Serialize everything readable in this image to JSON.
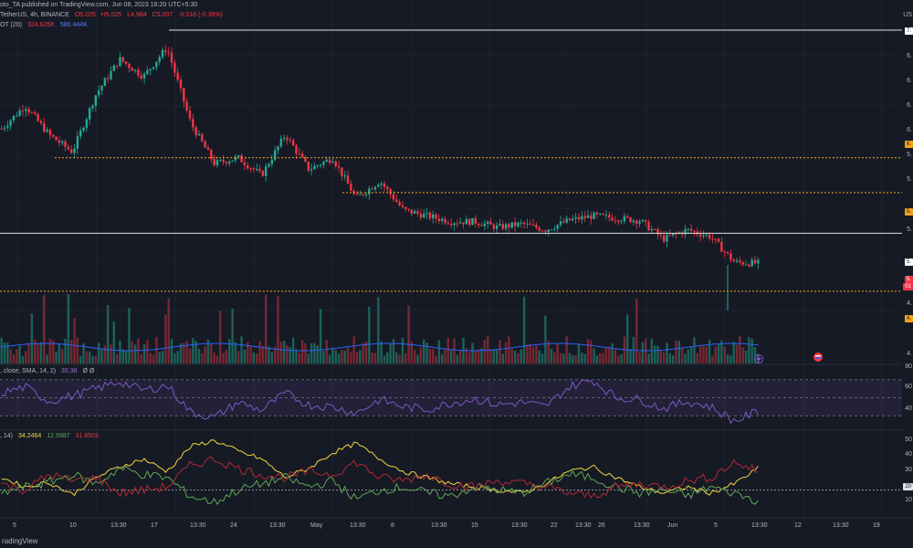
{
  "header": {
    "publisher": "oto_TA published on TradingView.com, Jun 08, 2023 16:20 UTC+5:30",
    "symbol": "TetherUS, 4h, BINANCE",
    "ohlc": {
      "o": "O5.025",
      "h": "H5.025",
      "l": "L4.984",
      "c": "C5.007",
      "chg": "-0.018 (-0.36%)"
    },
    "volume_line": {
      "label": "OT (20)",
      "v1": "324.625K",
      "v2": "586.444K"
    },
    "rsi_line": {
      "label": ", close, SMA, 14, 2)",
      "value": "35.36",
      "zero": "Ø Ø"
    },
    "dmi_line": {
      "label": ", 14)",
      "v1": "34.2464",
      "v2": "12.5987",
      "v3": "31.8503"
    }
  },
  "price_axis": {
    "currency": "US",
    "labels": [
      "6.",
      "6.",
      "6.",
      "6.",
      "5.",
      "5.",
      "5.",
      "4.",
      "4.",
      "4."
    ],
    "tags": [
      {
        "text": "7.",
        "bg": "#ffffff",
        "fg": "#131722"
      },
      {
        "text": "6.",
        "bg": "#f7a21b",
        "fg": "#131722"
      },
      {
        "text": "5.",
        "bg": "#f7a21b",
        "fg": "#131722"
      },
      {
        "text": "5.",
        "bg": "#ffffff",
        "fg": "#131722"
      },
      {
        "text": "5.",
        "bg": "#f23645",
        "fg": "#ffffff"
      },
      {
        "text": "01",
        "bg": "#f23645",
        "fg": "#ffffff"
      },
      {
        "text": "4.",
        "bg": "#f7a21b",
        "fg": "#131722"
      }
    ]
  },
  "rsi_axis": [
    "80",
    "60",
    "40"
  ],
  "dmi_axis": [
    "50",
    "40",
    "30",
    "20",
    "10"
  ],
  "dmi_tag": "20",
  "time_axis": [
    "5",
    "10",
    "13:30",
    "17",
    "13:30",
    "24",
    "13:30",
    "May",
    "13:30",
    "8",
    "13:30",
    "15",
    "13:30",
    "22",
    "13:30",
    "26",
    "13:30",
    "Jun",
    "5",
    "13:30",
    "12",
    "13:30",
    "19"
  ],
  "footer": "radingView",
  "colors": {
    "up": "#22ab94",
    "down": "#f23645",
    "rsi": "#7e57c2",
    "adx": "#f0d53b",
    "dip": "#5da853",
    "dim": "#b22833",
    "level": "#f7a21b",
    "white": "#e0e0e0"
  },
  "icons": {
    "lightning": "lightning-icon",
    "event": "event-flag-icon"
  },
  "chart_data": {
    "type": "candlestick",
    "title": "TetherUS, 4h, BINANCE",
    "price_anchors": [
      6.15,
      6.35,
      6.1,
      5.95,
      6.45,
      6.75,
      6.6,
      6.85,
      6.2,
      5.85,
      5.9,
      5.75,
      6.1,
      5.8,
      5.9,
      5.55,
      5.7,
      5.45,
      5.4,
      5.35,
      5.35,
      5.3,
      5.33,
      5.28,
      5.36,
      5.4,
      5.38,
      5.36,
      5.2,
      5.28,
      5.22,
      5.0,
      4.99
    ],
    "levels": {
      "top": 7.0,
      "orange_upper": 5.9,
      "orange_mid": 5.6,
      "white_support": 5.25,
      "orange_lower": 4.75
    },
    "rsi_anchors": [
      55,
      62,
      46,
      52,
      60,
      68,
      58,
      64,
      34,
      28,
      45,
      36,
      55,
      42,
      40,
      33,
      48,
      40,
      37,
      44,
      49,
      42,
      45,
      40,
      62,
      70,
      50,
      48,
      38,
      46,
      40,
      24,
      35
    ],
    "adx_anchors": [
      28,
      22,
      25,
      17,
      28,
      35,
      40,
      32,
      48,
      52,
      45,
      40,
      28,
      34,
      44,
      50,
      40,
      32,
      28,
      24,
      22,
      20,
      18,
      24,
      32,
      35,
      28,
      22,
      18,
      22,
      18,
      24,
      34
    ],
    "dip_anchors": [
      18,
      22,
      25,
      30,
      24,
      34,
      30,
      28,
      16,
      12,
      20,
      24,
      28,
      22,
      26,
      14,
      20,
      22,
      18,
      16,
      22,
      20,
      18,
      24,
      30,
      28,
      22,
      18,
      20,
      16,
      22,
      18,
      13
    ],
    "dim_anchors": [
      24,
      20,
      30,
      26,
      28,
      18,
      20,
      22,
      36,
      40,
      34,
      30,
      28,
      32,
      30,
      38,
      28,
      26,
      30,
      24,
      22,
      26,
      24,
      22,
      18,
      16,
      22,
      24,
      22,
      26,
      28,
      38,
      32
    ]
  }
}
